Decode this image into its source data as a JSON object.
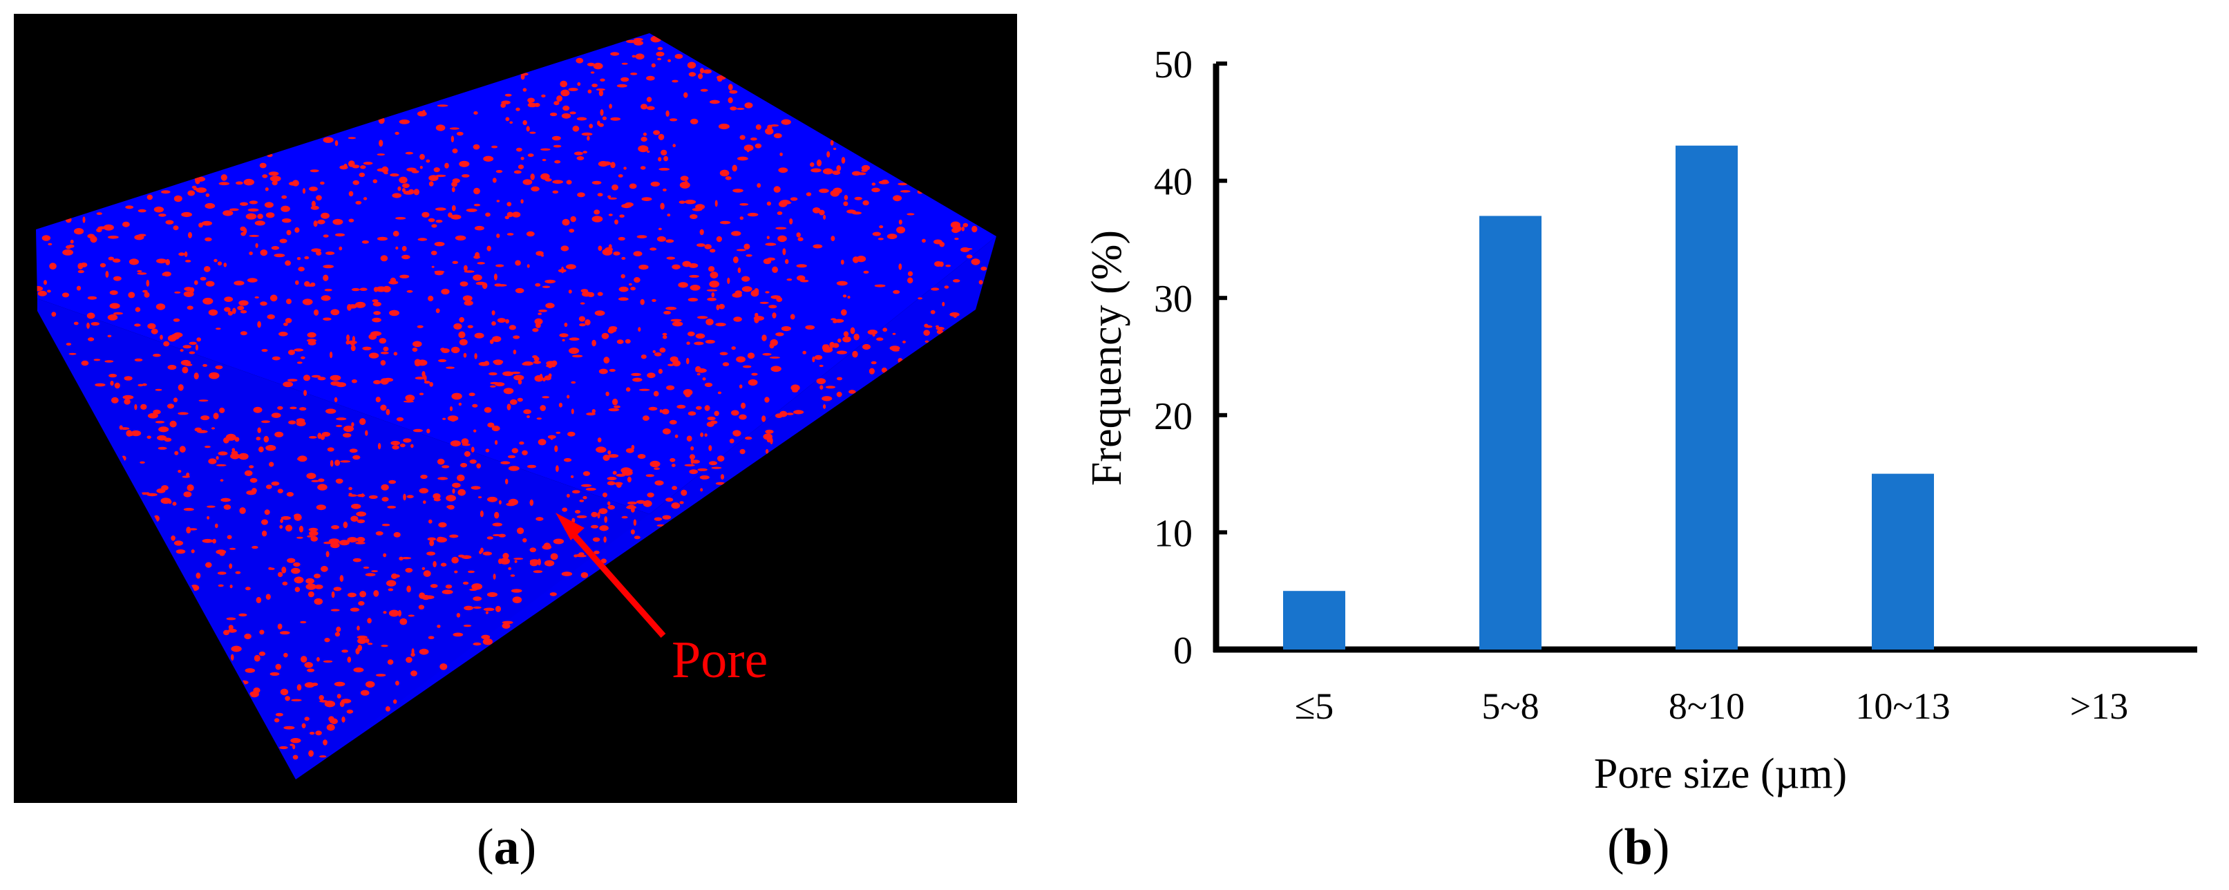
{
  "panel_a": {
    "label_open": "(",
    "label_letter": "a",
    "label_close": ")",
    "annotation": "Pore",
    "colors": {
      "background": "#000000",
      "solid": "#0000ff",
      "pores": "#ff1a1a",
      "annotation": "#ff0000"
    }
  },
  "panel_b": {
    "label_open": "(",
    "label_letter": "b",
    "label_close": ")"
  },
  "chart_data": {
    "type": "bar",
    "categories": [
      "≤5",
      "5~8",
      "8~10",
      "10~13",
      ">13"
    ],
    "values": [
      5,
      37,
      43,
      15,
      0
    ],
    "xlabel": "Pore size (µm)",
    "ylabel": "Frequency (%)",
    "ylim": [
      0,
      50
    ],
    "yticks": [
      0,
      10,
      20,
      30,
      40,
      50
    ],
    "grid": false,
    "legend": "none",
    "bar_color": "#1874cd"
  }
}
